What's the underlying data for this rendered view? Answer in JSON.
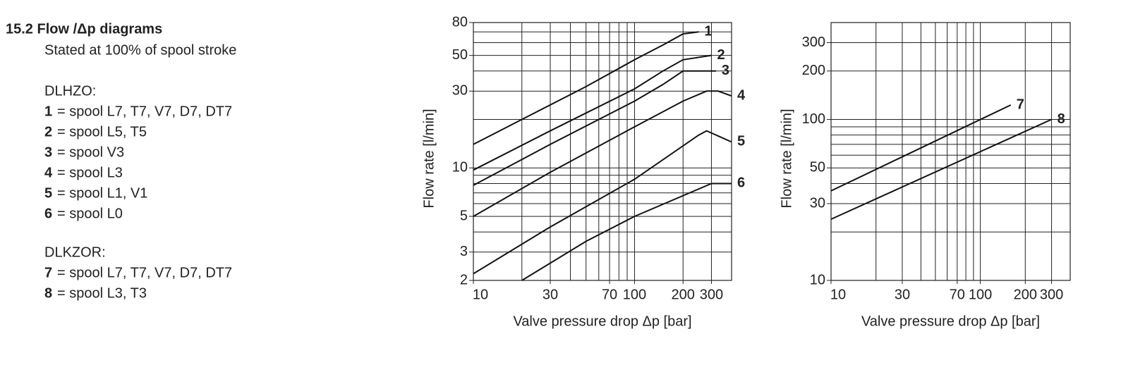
{
  "section": {
    "title": "15.2 Flow /Δp diagrams",
    "subtitle": "Stated at 100% of spool stroke",
    "groups": [
      {
        "title": "DLHZO:",
        "items": [
          {
            "key": "1",
            "text": "= spool L7, T7, V7, D7, DT7"
          },
          {
            "key": "2",
            "text": "= spool L5, T5"
          },
          {
            "key": "3",
            "text": "= spool V3"
          },
          {
            "key": "4",
            "text": "= spool L3"
          },
          {
            "key": "5",
            "text": "= spool L1, V1"
          },
          {
            "key": "6",
            "text": "= spool L0"
          }
        ]
      },
      {
        "title": "DLKZOR:",
        "items": [
          {
            "key": "7",
            "text": "= spool L7, T7, V7, D7, DT7"
          },
          {
            "key": "8",
            "text": "= spool L3, T3"
          }
        ]
      }
    ]
  },
  "chart_data": [
    {
      "type": "line",
      "x_label": "Valve pressure drop Δp [bar]",
      "y_label": "Flow rate [l/min]",
      "log_x": true,
      "log_y": true,
      "grid": true,
      "xlim": [
        10,
        400
      ],
      "xticks": [
        10,
        30,
        70,
        100,
        200,
        300
      ],
      "xminor": [
        20,
        40,
        50,
        60,
        80,
        90,
        400
      ],
      "ylim": [
        2,
        80
      ],
      "yticks": [
        2,
        3,
        5,
        10,
        30,
        50,
        80
      ],
      "yminor": [
        4,
        6,
        7,
        8,
        9,
        20,
        40,
        60,
        70
      ],
      "series": [
        {
          "name": "1",
          "color": "#111",
          "x": [
            10,
            20,
            50,
            100,
            150,
            200,
            250
          ],
          "values": [
            14,
            20,
            32,
            47,
            58,
            68,
            70
          ]
        },
        {
          "name": "2",
          "color": "#111",
          "x": [
            10,
            30,
            100,
            150,
            200,
            300
          ],
          "values": [
            9.7,
            17,
            31,
            40,
            47,
            50
          ]
        },
        {
          "name": "3",
          "color": "#111",
          "x": [
            10,
            30,
            100,
            150,
            200,
            320
          ],
          "values": [
            7.8,
            14,
            26,
            33,
            40,
            40
          ]
        },
        {
          "name": "4",
          "color": "#111",
          "x": [
            10,
            30,
            100,
            200,
            280,
            330,
            400
          ],
          "values": [
            5,
            9.4,
            18,
            26,
            30,
            30,
            28
          ]
        },
        {
          "name": "5",
          "color": "#111",
          "x": [
            10,
            30,
            100,
            250,
            280,
            400
          ],
          "values": [
            2.2,
            4.3,
            8.5,
            16,
            17,
            14.5
          ]
        },
        {
          "name": "6",
          "color": "#111",
          "x": [
            20,
            50,
            100,
            300,
            400
          ],
          "values": [
            2,
            3.5,
            5,
            8,
            8
          ]
        }
      ]
    },
    {
      "type": "line",
      "x_label": "Valve pressure drop Δp [bar]",
      "y_label": "Flow rate [l/min]",
      "log_x": true,
      "log_y": true,
      "grid": true,
      "xlim": [
        10,
        400
      ],
      "xticks": [
        10,
        30,
        70,
        100,
        200,
        300
      ],
      "xminor": [
        20,
        40,
        50,
        60,
        80,
        90,
        400
      ],
      "ylim": [
        10,
        400
      ],
      "yticks": [
        10,
        30,
        50,
        100,
        200,
        300
      ],
      "yminor": [
        20,
        40,
        60,
        70,
        80,
        90
      ],
      "series": [
        {
          "name": "7",
          "color": "#111",
          "x": [
            10,
            160
          ],
          "values": [
            36,
            123
          ]
        },
        {
          "name": "8",
          "color": "#111",
          "x": [
            10,
            300
          ],
          "values": [
            24,
            100
          ]
        }
      ]
    }
  ]
}
